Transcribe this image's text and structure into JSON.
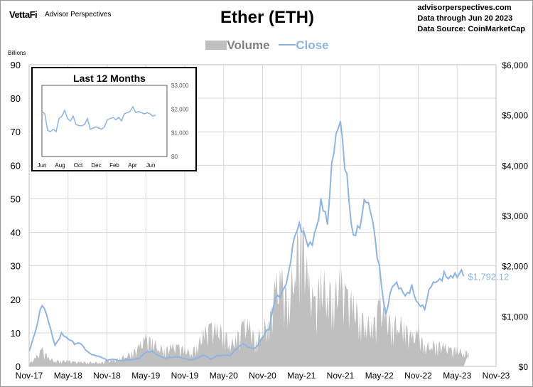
{
  "header": {
    "logo": "VettaFi",
    "brand": "Advisor Perspectives",
    "title": "Ether (ETH)",
    "info": [
      "advisorperspectives.com",
      "Data through Jun 20 2023",
      "Data Source: CoinMarketCap"
    ]
  },
  "colors": {
    "volume": "#bfbfbf",
    "close": "#8eb4e3",
    "grid": "#d9d9d9"
  },
  "chart_data": {
    "type": "area+line",
    "title": "Ether (ETH)",
    "ylabel": "Billions",
    "legend": {
      "placement": "top",
      "entries": [
        "Volume",
        "Close"
      ]
    },
    "grid": true,
    "ylim_left": [
      0,
      90
    ],
    "yticks_left": [
      "0",
      "10",
      "20",
      "30",
      "40",
      "50",
      "60",
      "70",
      "80",
      "90"
    ],
    "ylim_right": [
      0,
      6000
    ],
    "yticks_right": [
      "$0",
      "$1,000",
      "$2,000",
      "$3,000",
      "$4,000",
      "$5,000",
      "$6,000"
    ],
    "xticks": [
      "Nov-17",
      "May-18",
      "Nov-18",
      "May-19",
      "Nov-19",
      "May-20",
      "Nov-20",
      "May-21",
      "Nov-21",
      "May-22",
      "Nov-22",
      "May-23",
      "Nov-23"
    ],
    "x_months": [
      "2017-11",
      "2017-12",
      "2018-01",
      "2018-02",
      "2018-03",
      "2018-04",
      "2018-05",
      "2018-06",
      "2018-07",
      "2018-08",
      "2018-09",
      "2018-10",
      "2018-11",
      "2018-12",
      "2019-01",
      "2019-02",
      "2019-03",
      "2019-04",
      "2019-05",
      "2019-06",
      "2019-07",
      "2019-08",
      "2019-09",
      "2019-10",
      "2019-11",
      "2019-12",
      "2020-01",
      "2020-02",
      "2020-03",
      "2020-04",
      "2020-05",
      "2020-06",
      "2020-07",
      "2020-08",
      "2020-09",
      "2020-10",
      "2020-11",
      "2020-12",
      "2021-01",
      "2021-02",
      "2021-03",
      "2021-04",
      "2021-05",
      "2021-06",
      "2021-07",
      "2021-08",
      "2021-09",
      "2021-10",
      "2021-11",
      "2021-12",
      "2022-01",
      "2022-02",
      "2022-03",
      "2022-04",
      "2022-05",
      "2022-06",
      "2022-07",
      "2022-08",
      "2022-09",
      "2022-10",
      "2022-11",
      "2022-12",
      "2023-01",
      "2023-02",
      "2023-03",
      "2023-04",
      "2023-05",
      "2023-06"
    ],
    "series": [
      {
        "name": "Close",
        "axis": "right",
        "values": [
          300,
          750,
          1250,
          850,
          400,
          670,
          580,
          450,
          430,
          280,
          230,
          200,
          120,
          135,
          107,
          135,
          140,
          160,
          270,
          290,
          220,
          170,
          180,
          180,
          150,
          130,
          180,
          220,
          135,
          210,
          230,
          225,
          345,
          430,
          360,
          385,
          610,
          740,
          1310,
          1420,
          1920,
          2770,
          2710,
          2270,
          2540,
          3430,
          3000,
          4290,
          4630,
          3680,
          2690,
          2920,
          3280,
          2730,
          1940,
          1070,
          1680,
          1550,
          1330,
          1570,
          1300,
          1200,
          1585,
          1605,
          1820,
          1870,
          1875,
          1792.12
        ]
      },
      {
        "name": "Volume",
        "axis": "left",
        "values": [
          1,
          3,
          6,
          3,
          2,
          2,
          2,
          1.5,
          1.5,
          1.5,
          1.5,
          1.2,
          2,
          2,
          3,
          4,
          5,
          7,
          10,
          9,
          7,
          6,
          7,
          7,
          6,
          5,
          8,
          12,
          14,
          13,
          13,
          8,
          10,
          15,
          14,
          9,
          14,
          15,
          28,
          30,
          22,
          38,
          50,
          30,
          22,
          30,
          28,
          25,
          30,
          25,
          22,
          18,
          16,
          14,
          22,
          18,
          15,
          16,
          14,
          10,
          12,
          7,
          8,
          8,
          7,
          6,
          6,
          5
        ]
      }
    ],
    "end_label": "$1,792.12",
    "inset": {
      "title": "Last 12 Months",
      "xticks": [
        "Jun",
        "Aug",
        "Oct",
        "Dec",
        "Feb",
        "Apr",
        "Jun"
      ],
      "yticks": [
        "$0",
        "$1,000",
        "$2,000",
        "$3,000"
      ],
      "ylim": [
        0,
        3000
      ],
      "values": [
        1900,
        1800,
        1100,
        1050,
        1150,
        1050,
        1600,
        1700,
        1950,
        1600,
        1500,
        1700,
        1350,
        1300,
        1300,
        1350,
        1600,
        1150,
        1200,
        1250,
        1200,
        1150,
        1250,
        1550,
        1600,
        1650,
        1550,
        1650,
        1500,
        1800,
        1850,
        1900,
        2100,
        1850,
        1900,
        1850,
        1800,
        1850,
        1800,
        1700,
        1750
      ]
    }
  }
}
